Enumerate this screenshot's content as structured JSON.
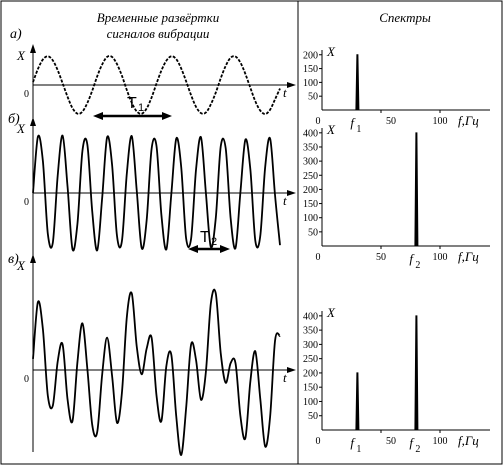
{
  "headers": {
    "left_line1": "Временные развёртки",
    "left_line2": "сигналов вибрации",
    "right": "Спектры"
  },
  "chart_data": [
    {
      "type": "line",
      "panel_label": "а)",
      "ylabel": "X",
      "xlabel": "t",
      "origin_label": "0",
      "period_label": "T",
      "period_subscript": "1",
      "series": [
        {
          "values": [
            0.1,
            0.55,
            0.88,
            0.99,
            0.85,
            0.51,
            0.06,
            -0.41,
            -0.8,
            -0.99,
            -0.92,
            -0.62,
            -0.19,
            0.3,
            0.71,
            0.97,
            0.97,
            0.72,
            0.32,
            -0.18,
            -0.61,
            -0.91,
            -0.99,
            -0.81,
            -0.43,
            0.05,
            0.5,
            0.84,
            0.99,
            0.89,
            0.57,
            0.13,
            -0.35,
            -0.75,
            -0.97,
            -0.95,
            -0.67,
            -0.26,
            0.23,
            0.66,
            0.94,
            0.98,
            0.77,
            0.38,
            -0.1,
            -0.56,
            -0.88,
            -1.0,
            -0.85,
            -0.49,
            -0.12
          ]
        }
      ]
    },
    {
      "type": "bar",
      "ylabel": "X",
      "xlabel": "f,Гц",
      "xticks": [
        50,
        100
      ],
      "yticks": [
        50,
        100,
        150,
        200
      ],
      "xlim": [
        0,
        120
      ],
      "ylim": [
        0,
        210
      ],
      "marker_labels": [
        {
          "text": "f",
          "sub": "1",
          "x": 30
        }
      ],
      "peaks": [
        {
          "x": 30,
          "value": 200
        }
      ]
    },
    {
      "type": "line",
      "panel_label": "б)",
      "ylabel": "X",
      "xlabel": "t",
      "origin_label": "0",
      "period_label": "T",
      "period_subscript": "2",
      "series": [
        {
          "values": [
            0.0,
            0.97,
            0.55,
            -0.7,
            -0.86,
            0.3,
            0.99,
            0.1,
            -0.97,
            -0.52,
            0.72,
            0.84,
            -0.33,
            -0.99,
            -0.08,
            0.96,
            0.5,
            -0.74,
            -0.83,
            0.35,
            0.98,
            0.05,
            -0.95,
            -0.48,
            0.76,
            0.81,
            -0.38,
            -0.97,
            -0.02,
            0.94,
            0.45,
            -0.78,
            -0.79,
            0.4,
            0.96,
            0.0,
            -0.93,
            -0.43,
            0.8,
            0.77,
            -0.43,
            -0.95,
            0.03,
            0.92,
            0.4,
            -0.82,
            -0.75,
            0.45,
            0.94,
            -0.05,
            -0.9
          ]
        }
      ]
    },
    {
      "type": "bar",
      "ylabel": "X",
      "xlabel": "f,Гц",
      "xticks": [
        50,
        100
      ],
      "yticks": [
        50,
        100,
        150,
        200,
        250,
        300,
        350,
        400
      ],
      "xlim": [
        0,
        120
      ],
      "ylim": [
        0,
        410
      ],
      "marker_labels": [
        {
          "text": "f",
          "sub": "2",
          "x": 80
        }
      ],
      "peaks": [
        {
          "x": 80,
          "value": 400
        }
      ]
    },
    {
      "type": "line",
      "panel_label": "в)",
      "ylabel": "X",
      "xlabel": "t",
      "origin_label": "0",
      "series": [
        {
          "values": [
            0.13,
            0.8,
            0.48,
            -0.3,
            -0.42,
            0.1,
            0.3,
            -0.35,
            -0.6,
            0.1,
            0.55,
            0.02,
            -0.65,
            -0.73,
            -0.05,
            0.38,
            -0.06,
            -0.62,
            -0.27,
            0.63,
            0.9,
            0.28,
            -0.05,
            0.25,
            0.38,
            -0.3,
            -0.6,
            0.05,
            0.18,
            -0.55,
            -1.0,
            -0.45,
            0.3,
            0.12,
            -0.35,
            -0.02,
            0.78,
            0.9,
            0.2,
            -0.15,
            0.08,
            0.08,
            -0.55,
            -0.8,
            -0.13,
            0.22,
            -0.33,
            -0.9,
            -0.55,
            0.35,
            0.4
          ]
        }
      ]
    },
    {
      "type": "bar",
      "ylabel": "X",
      "xlabel": "f,Гц",
      "xticks": [
        50,
        100
      ],
      "yticks": [
        50,
        100,
        150,
        200,
        250,
        300,
        350,
        400
      ],
      "xlim": [
        0,
        120
      ],
      "ylim": [
        0,
        410
      ],
      "marker_labels": [
        {
          "text": "f",
          "sub": "1",
          "x": 30
        },
        {
          "text": "f",
          "sub": "2",
          "x": 80
        }
      ],
      "peaks": [
        {
          "x": 30,
          "value": 200
        },
        {
          "x": 80,
          "value": 400
        }
      ]
    }
  ]
}
